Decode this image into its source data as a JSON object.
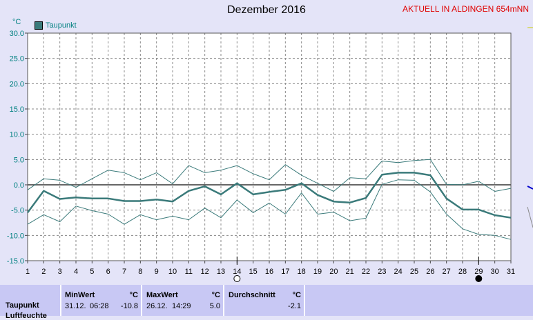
{
  "header": {
    "title": "Dezember 2016",
    "station": "AKTUELL IN ALDINGEN 654mNN",
    "unit": "°C"
  },
  "legend": {
    "label": "Taupunkt",
    "color": "#3a7a7a"
  },
  "chart_data": {
    "type": "line",
    "title": "Dezember 2016",
    "ylabel": "°C",
    "ylim": [
      -15,
      30
    ],
    "yticks": [
      "30.0",
      "25.0",
      "20.0",
      "15.0",
      "10.0",
      "5.0",
      "0.0",
      "-5.0",
      "-10.0",
      "-15.0"
    ],
    "x": [
      1,
      2,
      3,
      4,
      5,
      6,
      7,
      8,
      9,
      10,
      11,
      12,
      13,
      14,
      15,
      16,
      17,
      18,
      19,
      20,
      21,
      22,
      23,
      24,
      25,
      26,
      27,
      28,
      29,
      30,
      31
    ],
    "grid": true,
    "series": [
      {
        "name": "Taupunkt",
        "role": "mean",
        "color": "#3a7a7a",
        "values": [
          -5.5,
          -1.2,
          -2.8,
          -2.5,
          -2.7,
          -2.7,
          -3.2,
          -3.2,
          -2.9,
          -3.3,
          -1.2,
          -0.3,
          -1.9,
          0.3,
          -1.9,
          -1.4,
          -1.0,
          0.3,
          -2.0,
          -3.3,
          -3.5,
          -2.6,
          2.0,
          2.4,
          2.4,
          1.9,
          -2.7,
          -4.9,
          -4.9,
          -6.0,
          -6.5
        ]
      },
      {
        "role": "max",
        "color": "#3a7a7a",
        "values": [
          -1.0,
          1.2,
          0.9,
          -0.5,
          1.2,
          2.9,
          2.4,
          1.0,
          2.4,
          0.2,
          3.8,
          2.4,
          2.9,
          3.8,
          2.2,
          1.0,
          4.0,
          1.9,
          0.3,
          -1.3,
          1.4,
          1.2,
          4.7,
          4.4,
          4.8,
          5.0,
          0.1,
          0.0,
          0.7,
          -1.3,
          -0.7
        ]
      },
      {
        "role": "min",
        "color": "#3a7a7a",
        "values": [
          -7.8,
          -5.9,
          -7.3,
          -4.2,
          -5.1,
          -5.8,
          -7.8,
          -5.9,
          -6.9,
          -6.2,
          -6.9,
          -4.6,
          -6.5,
          -3.0,
          -5.5,
          -3.6,
          -5.8,
          -1.6,
          -5.8,
          -5.4,
          -7.1,
          -6.6,
          0.1,
          1.0,
          0.9,
          -1.4,
          -5.8,
          -8.7,
          -9.8,
          -10.0,
          -10.8
        ]
      }
    ],
    "markers": [
      {
        "x": 14,
        "symbol": "open-circle"
      },
      {
        "x": 29,
        "symbol": "filled-circle"
      }
    ],
    "zero_line": true
  },
  "stats": {
    "row_label": "Taupunkt",
    "row_label_2": "Luftfeuchte",
    "min": {
      "header": "MinWert",
      "unit": "°C",
      "date": "31.12.",
      "time": "06:28",
      "value": "-10.8"
    },
    "max": {
      "header": "MaxWert",
      "unit": "°C",
      "date": "26.12.",
      "time": "14:29",
      "value": "5.0"
    },
    "avg": {
      "header": "Durchschnitt",
      "unit": "°C",
      "value": "-2.1"
    }
  }
}
